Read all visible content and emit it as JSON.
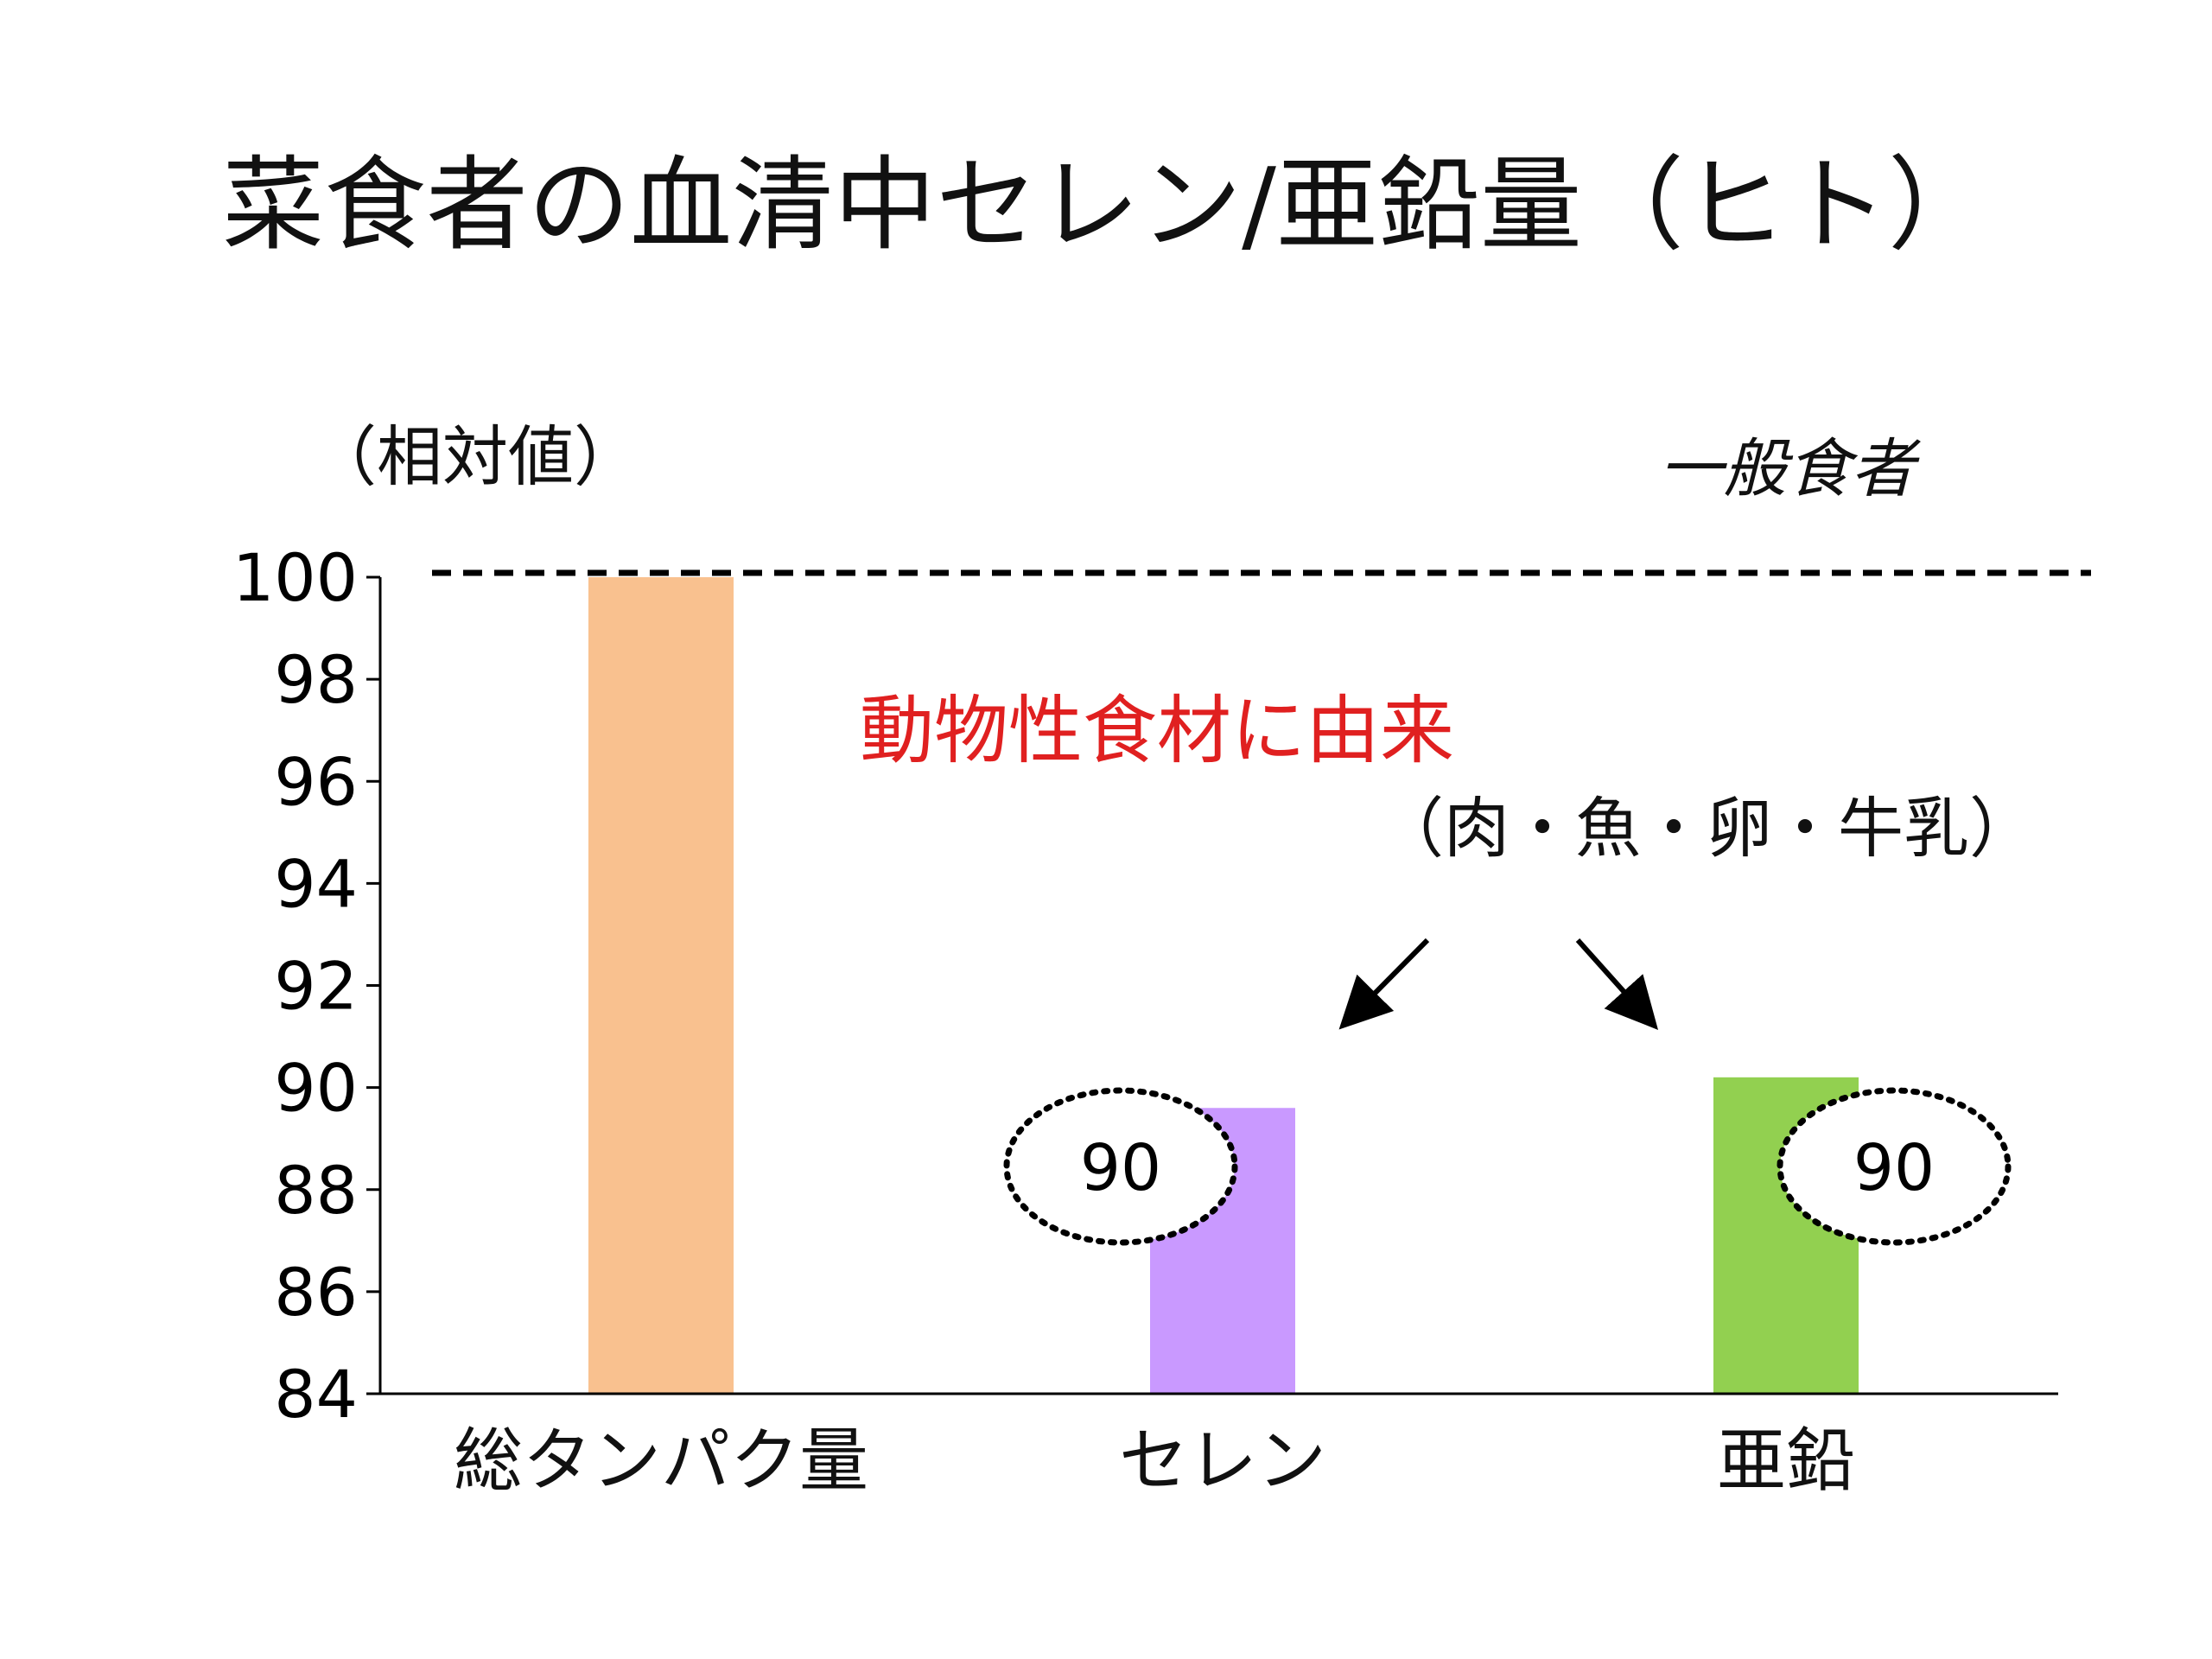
{
  "chart_data": {
    "type": "bar",
    "title": "菜食者の血清中セレン/亜鉛量（ヒト）",
    "ylabel": "（相対値）",
    "xlabel": "",
    "ylim": [
      84,
      100
    ],
    "yticks": [
      100,
      98,
      96,
      94,
      92,
      90,
      88,
      86,
      84
    ],
    "categories": [
      "総タンパク量",
      "セレン",
      "亜鉛"
    ],
    "values": [
      100,
      89.6,
      90.2
    ],
    "colors": [
      "#f9c18f",
      "#c999ff",
      "#92d050"
    ],
    "reference_line": {
      "value": 100,
      "label": "一般食者",
      "style": "dashed"
    },
    "annotations": {
      "source_label": "動物性食材に由来",
      "source_detail": "（肉・魚・卵・牛乳）",
      "source_color": "#e02020",
      "bubbles": [
        {
          "category": "セレン",
          "text": "90"
        },
        {
          "category": "亜鉛",
          "text": "90"
        }
      ]
    },
    "grid": false,
    "legend": "none"
  }
}
